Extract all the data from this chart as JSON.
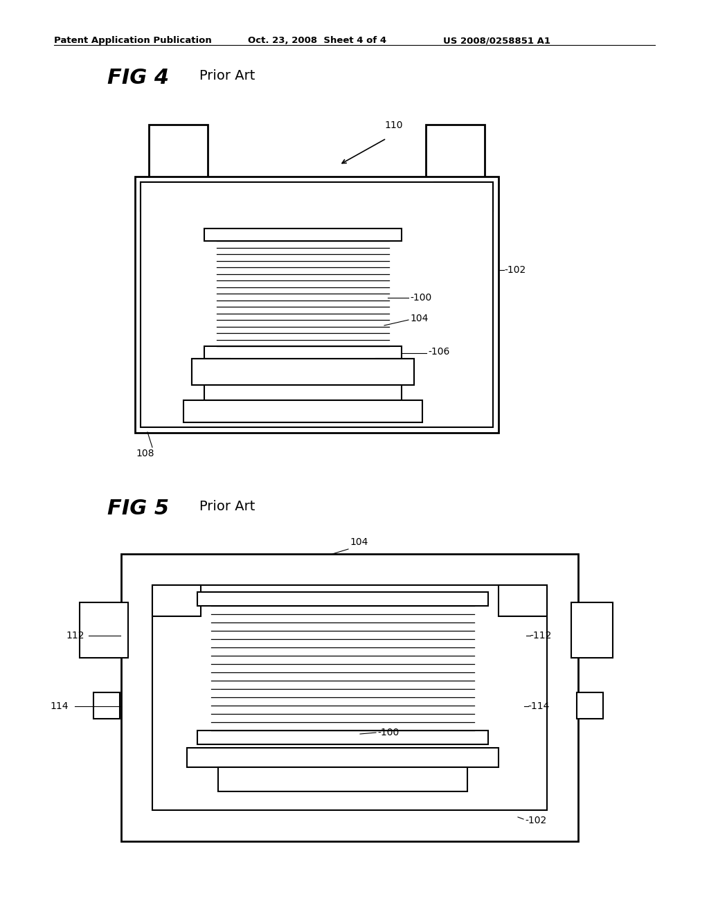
{
  "bg": "#ffffff",
  "lc": "#000000",
  "header_left": "Patent Application Publication",
  "header_mid": "Oct. 23, 2008  Sheet 4 of 4",
  "header_right": "US 2008/0258851 A1",
  "fig4_label": "FIG 4",
  "fig4_sub": "Prior Art",
  "fig5_label": "FIG 5",
  "fig5_sub": "Prior Art"
}
